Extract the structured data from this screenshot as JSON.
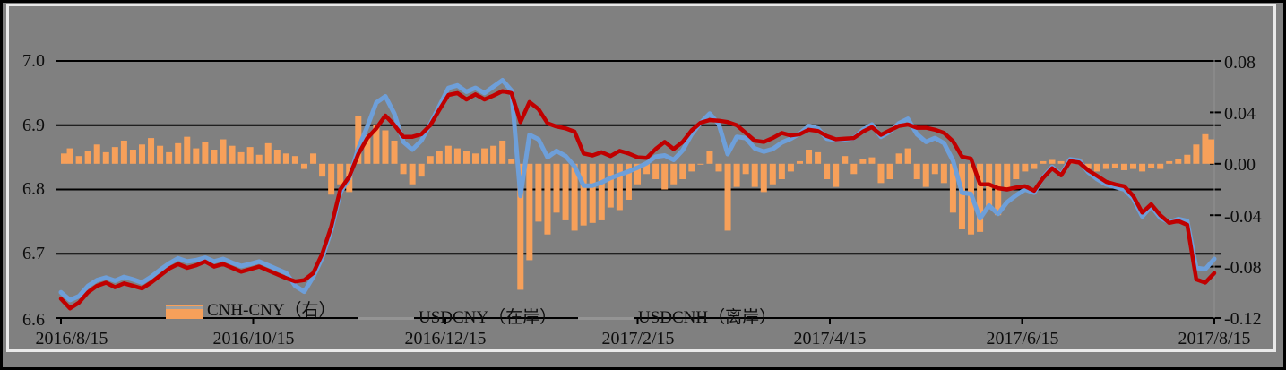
{
  "colors": {
    "background": "#808080",
    "frame": "#E9E9E9",
    "border": "#000000",
    "grid": "#000000",
    "bar": "#F7A05A",
    "usdcny_line": "#C00000",
    "usdcnh_line": "#6E9FD9",
    "legend_key_line": "#949494",
    "text": "#0d0d0d"
  },
  "chart_data": {
    "type": "combo-line-bar",
    "title": "",
    "grid": "horizontal",
    "legend_position": "bottom-inside",
    "x_axis": {
      "tick_labels": [
        "2016/8/15",
        "2016/10/15",
        "2016/12/15",
        "2017/2/15",
        "2017/4/15",
        "2017/6/15",
        "2017/8/15"
      ]
    },
    "y_left": {
      "labels": [
        "7.0",
        "6.9",
        "6.8",
        "6.7",
        "6.6"
      ],
      "values": [
        7.0,
        6.9,
        6.8,
        6.7,
        6.6
      ],
      "min": 6.6,
      "max": 7.0
    },
    "y_right": {
      "labels": [
        "0.08",
        "0.04",
        "0.00",
        "-0.04",
        "-0.08",
        "-0.12"
      ],
      "values": [
        0.08,
        0.04,
        0.0,
        -0.04,
        -0.08,
        -0.12
      ],
      "min": -0.12,
      "max": 0.08
    },
    "n_points": 129,
    "series": [
      {
        "name": "CNH-CNY（右）",
        "type": "bar",
        "axis": "right",
        "color": "#F7A05A",
        "values": [
          0.008,
          0.012,
          0.006,
          0.01,
          0.015,
          0.009,
          0.013,
          0.018,
          0.011,
          0.015,
          0.02,
          0.014,
          0.009,
          0.016,
          0.021,
          0.012,
          0.017,
          0.011,
          0.019,
          0.014,
          0.009,
          0.013,
          0.007,
          0.016,
          0.011,
          0.008,
          0.006,
          -0.004,
          0.008,
          -0.01,
          -0.024,
          -0.016,
          -0.022,
          0.037,
          0.022,
          0.03,
          0.026,
          0.018,
          -0.008,
          -0.016,
          -0.01,
          0.006,
          0.01,
          0.014,
          0.012,
          0.01,
          0.008,
          0.012,
          0.014,
          0.018,
          0.004,
          -0.098,
          -0.075,
          -0.045,
          -0.055,
          -0.038,
          -0.044,
          -0.052,
          -0.048,
          -0.046,
          -0.044,
          -0.034,
          -0.036,
          -0.028,
          -0.016,
          -0.008,
          -0.012,
          -0.02,
          -0.016,
          -0.012,
          -0.006,
          0.0,
          0.01,
          -0.006,
          -0.052,
          -0.018,
          -0.008,
          -0.018,
          -0.022,
          -0.016,
          -0.012,
          -0.006,
          0.002,
          0.011,
          0.009,
          -0.012,
          -0.018,
          0.006,
          -0.008,
          0.004,
          0.005,
          -0.015,
          -0.012,
          0.008,
          0.012,
          -0.012,
          -0.018,
          -0.008,
          -0.015,
          -0.038,
          -0.051,
          -0.055,
          -0.053,
          -0.033,
          -0.04,
          -0.02,
          -0.012,
          -0.006,
          -0.004,
          0.002,
          0.003,
          0.002,
          0.004,
          0.003,
          -0.004,
          -0.006,
          -0.004,
          -0.003,
          -0.005,
          -0.004,
          -0.006,
          -0.003,
          -0.004,
          0.002,
          0.004,
          0.007,
          0.015,
          0.023,
          0.019
        ]
      },
      {
        "name": "USDCNY（在岸）",
        "type": "line",
        "axis": "left",
        "color": "#C00000",
        "values": [
          6.63,
          6.615,
          6.624,
          6.64,
          6.65,
          6.655,
          6.648,
          6.654,
          6.65,
          6.646,
          6.655,
          6.666,
          6.677,
          6.684,
          6.678,
          6.682,
          6.688,
          6.68,
          6.684,
          6.678,
          6.672,
          6.676,
          6.68,
          6.674,
          6.668,
          6.662,
          6.657,
          6.659,
          6.67,
          6.7,
          6.742,
          6.8,
          6.82,
          6.855,
          6.88,
          6.895,
          6.915,
          6.9,
          6.882,
          6.882,
          6.886,
          6.9,
          6.924,
          6.947,
          6.95,
          6.94,
          6.948,
          6.94,
          6.946,
          6.953,
          6.95,
          6.905,
          6.936,
          6.925,
          6.903,
          6.898,
          6.895,
          6.89,
          6.856,
          6.853,
          6.858,
          6.852,
          6.86,
          6.856,
          6.85,
          6.849,
          6.863,
          6.874,
          6.863,
          6.874,
          6.892,
          6.904,
          6.908,
          6.907,
          6.905,
          6.9,
          6.888,
          6.876,
          6.874,
          6.88,
          6.888,
          6.884,
          6.886,
          6.893,
          6.891,
          6.883,
          6.878,
          6.879,
          6.88,
          6.89,
          6.897,
          6.885,
          6.892,
          6.899,
          6.901,
          6.896,
          6.896,
          6.893,
          6.888,
          6.875,
          6.851,
          6.848,
          6.808,
          6.808,
          6.802,
          6.8,
          6.803,
          6.805,
          6.798,
          6.818,
          6.833,
          6.822,
          6.844,
          6.842,
          6.83,
          6.821,
          6.812,
          6.808,
          6.805,
          6.79,
          6.764,
          6.777,
          6.76,
          6.748,
          6.751,
          6.745,
          6.66,
          6.655,
          6.67
        ]
      },
      {
        "name": "USDCNH（离岸）",
        "type": "line",
        "axis": "left",
        "color": "#6E9FD9",
        "values": [
          6.64,
          6.628,
          6.634,
          6.65,
          6.659,
          6.663,
          6.658,
          6.664,
          6.66,
          6.655,
          6.664,
          6.675,
          6.685,
          6.693,
          6.688,
          6.69,
          6.694,
          6.688,
          6.692,
          6.686,
          6.681,
          6.684,
          6.688,
          6.682,
          6.676,
          6.67,
          6.65,
          6.641,
          6.664,
          6.694,
          6.736,
          6.795,
          6.818,
          6.864,
          6.898,
          6.935,
          6.945,
          6.918,
          6.874,
          6.862,
          6.876,
          6.902,
          6.93,
          6.958,
          6.962,
          6.952,
          6.958,
          6.95,
          6.96,
          6.97,
          6.954,
          6.79,
          6.885,
          6.878,
          6.85,
          6.86,
          6.852,
          6.836,
          6.806,
          6.806,
          6.811,
          6.818,
          6.823,
          6.828,
          6.834,
          6.841,
          6.851,
          6.853,
          6.846,
          6.861,
          6.886,
          6.904,
          6.918,
          6.902,
          6.855,
          6.882,
          6.88,
          6.864,
          6.859,
          6.863,
          6.873,
          6.879,
          6.887,
          6.899,
          6.895,
          6.879,
          6.877,
          6.878,
          6.88,
          6.893,
          6.901,
          6.882,
          6.89,
          6.903,
          6.91,
          6.886,
          6.874,
          6.88,
          6.872,
          6.845,
          6.795,
          6.793,
          6.755,
          6.775,
          6.762,
          6.78,
          6.791,
          6.8,
          6.795,
          6.819,
          6.835,
          6.823,
          6.847,
          6.845,
          6.827,
          6.816,
          6.808,
          6.804,
          6.8,
          6.786,
          6.758,
          6.774,
          6.756,
          6.749,
          6.754,
          6.751,
          6.678,
          6.676,
          6.692
        ]
      }
    ]
  }
}
